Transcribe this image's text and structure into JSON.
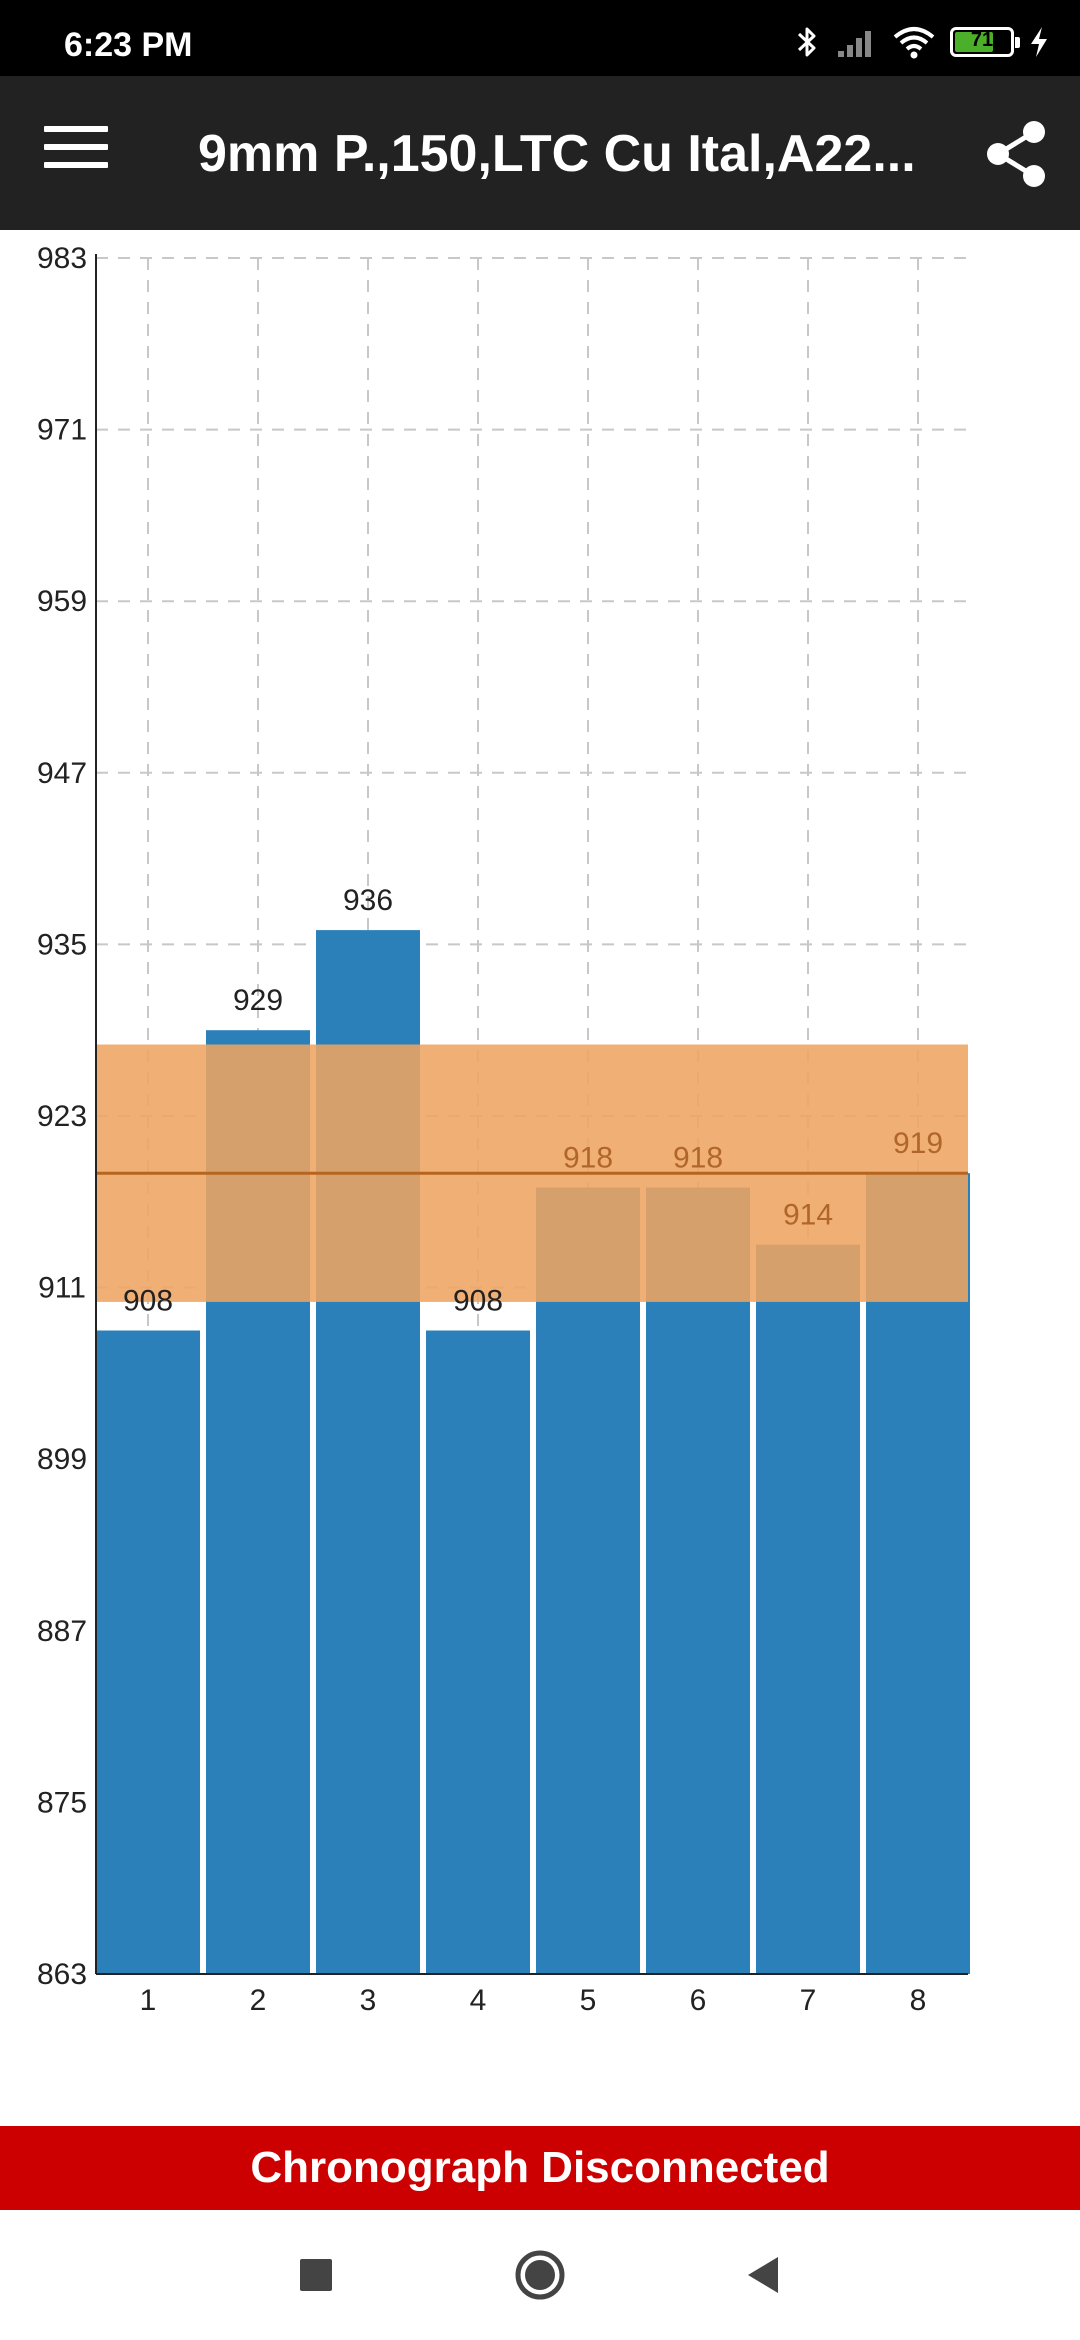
{
  "status_bar": {
    "time": "6:23 PM",
    "battery_level": "71",
    "battery_fraction": 0.71,
    "icons": [
      "bluetooth-icon",
      "signal-icon",
      "wifi-icon",
      "battery-icon",
      "charging-icon"
    ]
  },
  "app_bar": {
    "title": "9mm P.,150,LTC Cu Ital,A22...",
    "menu_icon": "hamburger-menu-icon",
    "share_icon": "share-icon"
  },
  "chart_data": {
    "type": "bar",
    "categories": [
      "1",
      "2",
      "3",
      "4",
      "5",
      "6",
      "7",
      "8"
    ],
    "values": [
      908,
      929,
      936,
      908,
      918,
      918,
      914,
      919
    ],
    "data_labels": [
      "908",
      "929",
      "936",
      "908",
      "918",
      "918",
      "914",
      "919"
    ],
    "ylim": [
      863,
      983
    ],
    "yticks": [
      "983",
      "971",
      "959",
      "947",
      "935",
      "923",
      "911",
      "899",
      "887",
      "875",
      "863"
    ],
    "ytick_values": [
      983,
      971,
      959,
      947,
      935,
      923,
      911,
      899,
      887,
      875,
      863
    ],
    "mean": 919,
    "band": [
      910,
      928
    ],
    "grid": true,
    "colors": {
      "bar": "#2b80ba",
      "band": "#eea462",
      "mean_line": "#b5651d",
      "overlap_label": "#b0662a",
      "grid": "#c8c8c8"
    }
  },
  "banner": {
    "text": "Chronograph Disconnected",
    "color": "#cc0000"
  },
  "nav_bar": {
    "icons": [
      "recent-apps-icon",
      "home-icon",
      "back-icon"
    ]
  }
}
